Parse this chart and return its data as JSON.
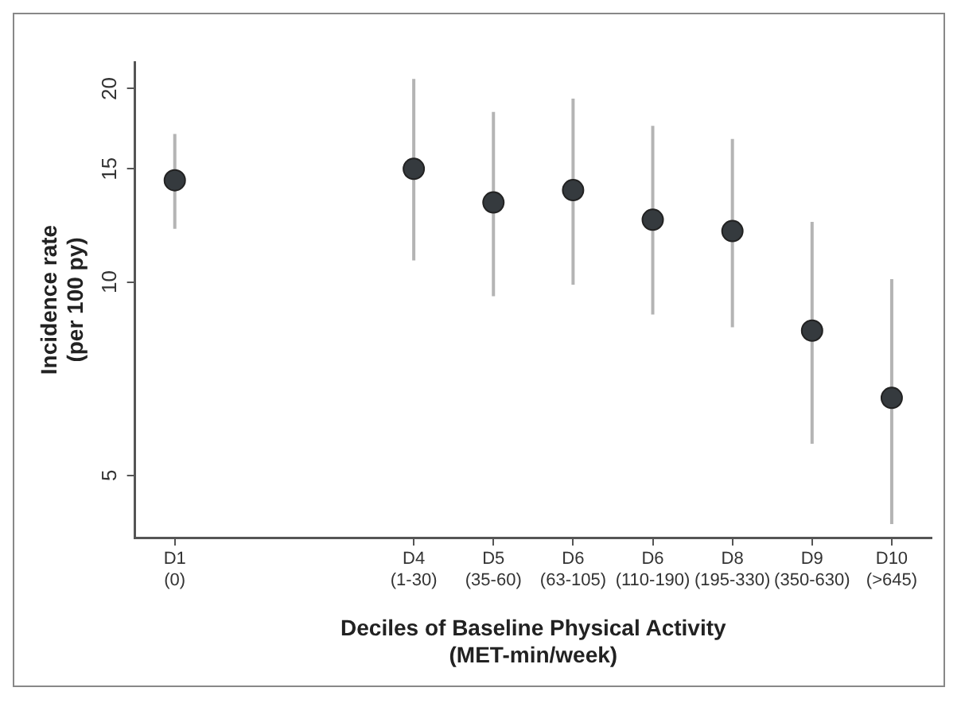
{
  "chart_data": {
    "type": "scatter",
    "xlabel": "Deciles of Baseline Physical Activity\n(MET-min/week)",
    "ylabel": "Incidence rate\n(per 100 py)",
    "categories": [
      "D1\n(0)",
      null,
      null,
      "D4\n(1-30)",
      "D5\n(35-60)",
      "D6\n(63-105)",
      "D6\n(110-190)",
      "D8\n(195-330)",
      "D9\n(350-630)",
      "D10\n(>645)"
    ],
    "values": [
      14.4,
      null,
      null,
      15.0,
      13.3,
      13.9,
      12.5,
      12.0,
      8.4,
      6.6
    ],
    "errors": [
      [
        12.1,
        17.0
      ],
      null,
      null,
      [
        10.8,
        20.7
      ],
      [
        9.5,
        18.4
      ],
      [
        9.9,
        19.3
      ],
      [
        8.9,
        17.5
      ],
      [
        8.5,
        16.7
      ],
      [
        5.6,
        12.4
      ],
      [
        4.2,
        10.1
      ]
    ],
    "color": "#353a3e",
    "log": "y",
    "ylim": [
      4,
      22
    ],
    "yticks": [
      5,
      10,
      15,
      20
    ],
    "marker": "circle",
    "grid": false,
    "legend": false
  }
}
